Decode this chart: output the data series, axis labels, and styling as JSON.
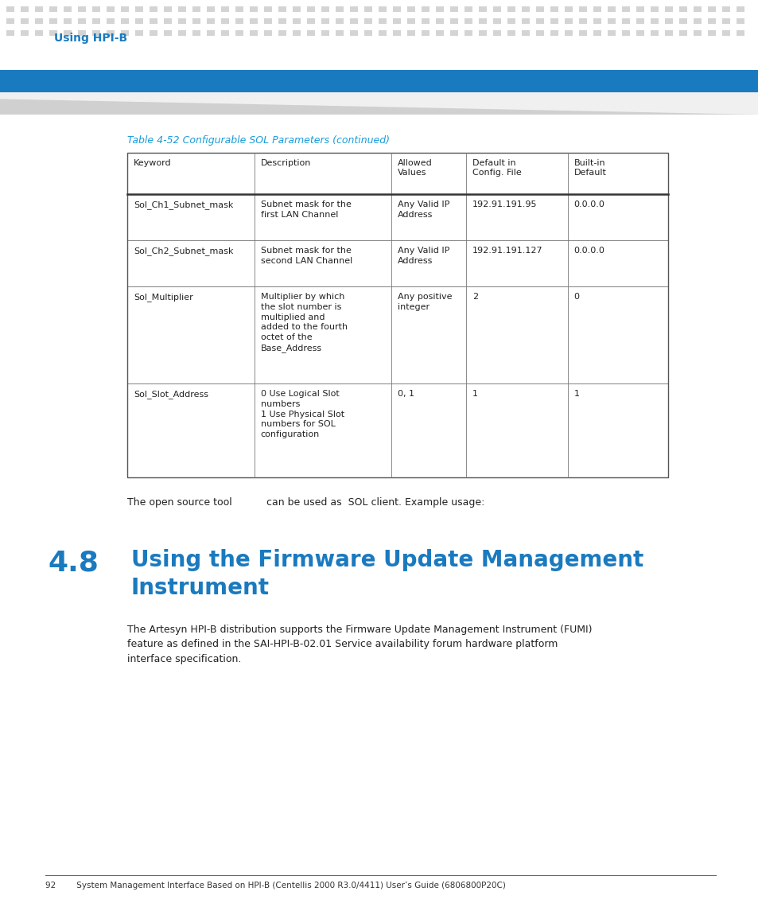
{
  "bg_color": "#ffffff",
  "header_bar_color": "#1a7abf",
  "header_text": "Using HPI-B",
  "header_text_color": "#1a7abf",
  "dot_pattern_color": "#d4d4d4",
  "footer_line_color": "#1a7abf",
  "footer_text": "92        System Management Interface Based on HPI-B (Centellis 2000 R3.0/4411) User’s Guide (6806800P20C)",
  "footer_text_color": "#333333",
  "footer_text_fontsize": 7.5,
  "table_caption": "Table 4-52 Configurable SOL Parameters (continued)",
  "table_caption_color": "#1a9cd8",
  "table_caption_fontsize": 9,
  "table_headers": [
    "Keyword",
    "Description",
    "Allowed\nValues",
    "Default in\nConfig. File",
    "Built-in\nDefault"
  ],
  "table_rows": [
    [
      "Sol_Ch1_Subnet_mask",
      "Subnet mask for the\nfirst LAN Channel",
      "Any Valid IP\nAddress",
      "192.91.191.95",
      "0.0.0.0"
    ],
    [
      "Sol_Ch2_Subnet_mask",
      "Subnet mask for the\nsecond LAN Channel",
      "Any Valid IP\nAddress",
      "192.91.191.127",
      "0.0.0.0"
    ],
    [
      "Sol_Multiplier",
      "Multiplier by which\nthe slot number is\nmultiplied and\nadded to the fourth\noctet of the\nBase_Address",
      "Any positive\ninteger",
      "2",
      "0"
    ],
    [
      "Sol_Slot_Address",
      "0 Use Logical Slot\nnumbers\n1 Use Physical Slot\nnumbers for SOL\nconfiguration",
      "0, 1",
      "1",
      "1"
    ]
  ],
  "open_source_text1": "The open source tool",
  "open_source_text2": "can be used as  SOL client. Example usage:",
  "section_number": "4.8",
  "section_title": "Using the Firmware Update Management\nInstrument",
  "section_title_color": "#1a7abf",
  "section_number_fontsize": 26,
  "section_title_fontsize": 20,
  "body_text": "The Artesyn HPI-B distribution supports the Firmware Update Management Instrument (FUMI)\nfeature as defined in the SAI-HPI-B-02.01 Service availability forum hardware platform\ninterface specification.",
  "body_text_fontsize": 9
}
